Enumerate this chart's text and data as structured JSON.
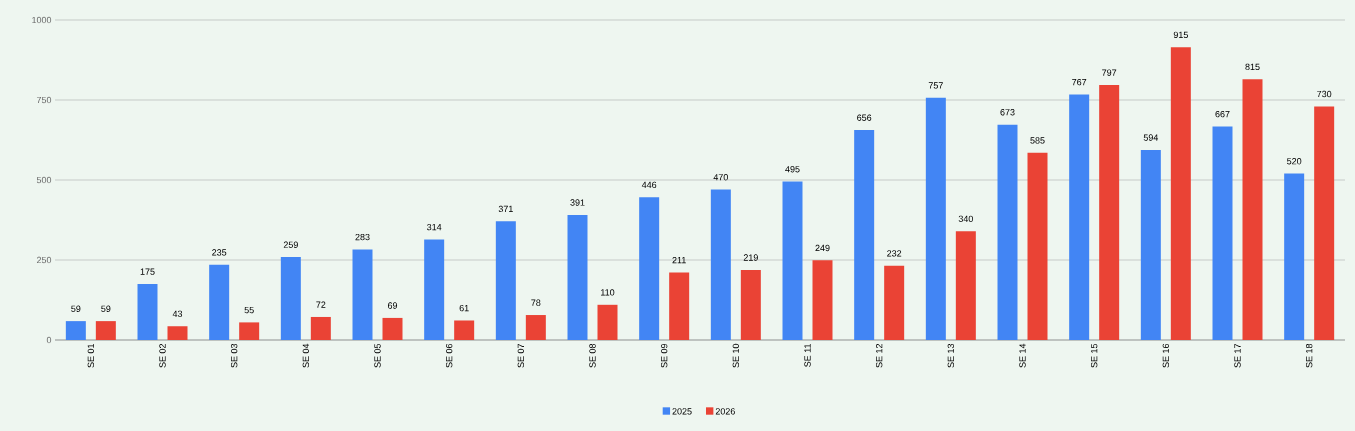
{
  "chart_data": {
    "type": "bar",
    "categories": [
      "SE 01",
      "SE 02",
      "SE 03",
      "SE 04",
      "SE 05",
      "SE 06",
      "SE 07",
      "SE 08",
      "SE 09",
      "SE 10",
      "SE 11",
      "SE 12",
      "SE 13",
      "SE 14",
      "SE 15",
      "SE 16",
      "SE 17",
      "SE 18"
    ],
    "series": [
      {
        "name": "2025",
        "color": "#4285f4",
        "values": [
          59,
          175,
          235,
          259,
          283,
          314,
          371,
          391,
          446,
          470,
          495,
          656,
          757,
          673,
          767,
          594,
          667,
          520
        ]
      },
      {
        "name": "2026",
        "color": "#ea4335",
        "values": [
          59,
          43,
          55,
          72,
          69,
          61,
          78,
          110,
          211,
          219,
          249,
          232,
          340,
          585,
          797,
          915,
          815,
          730
        ]
      }
    ],
    "ylim": [
      0,
      1000
    ],
    "yticks": [
      0,
      250,
      500,
      750,
      1000
    ],
    "grid": "y",
    "legend": "bottom",
    "data_labels": true
  }
}
